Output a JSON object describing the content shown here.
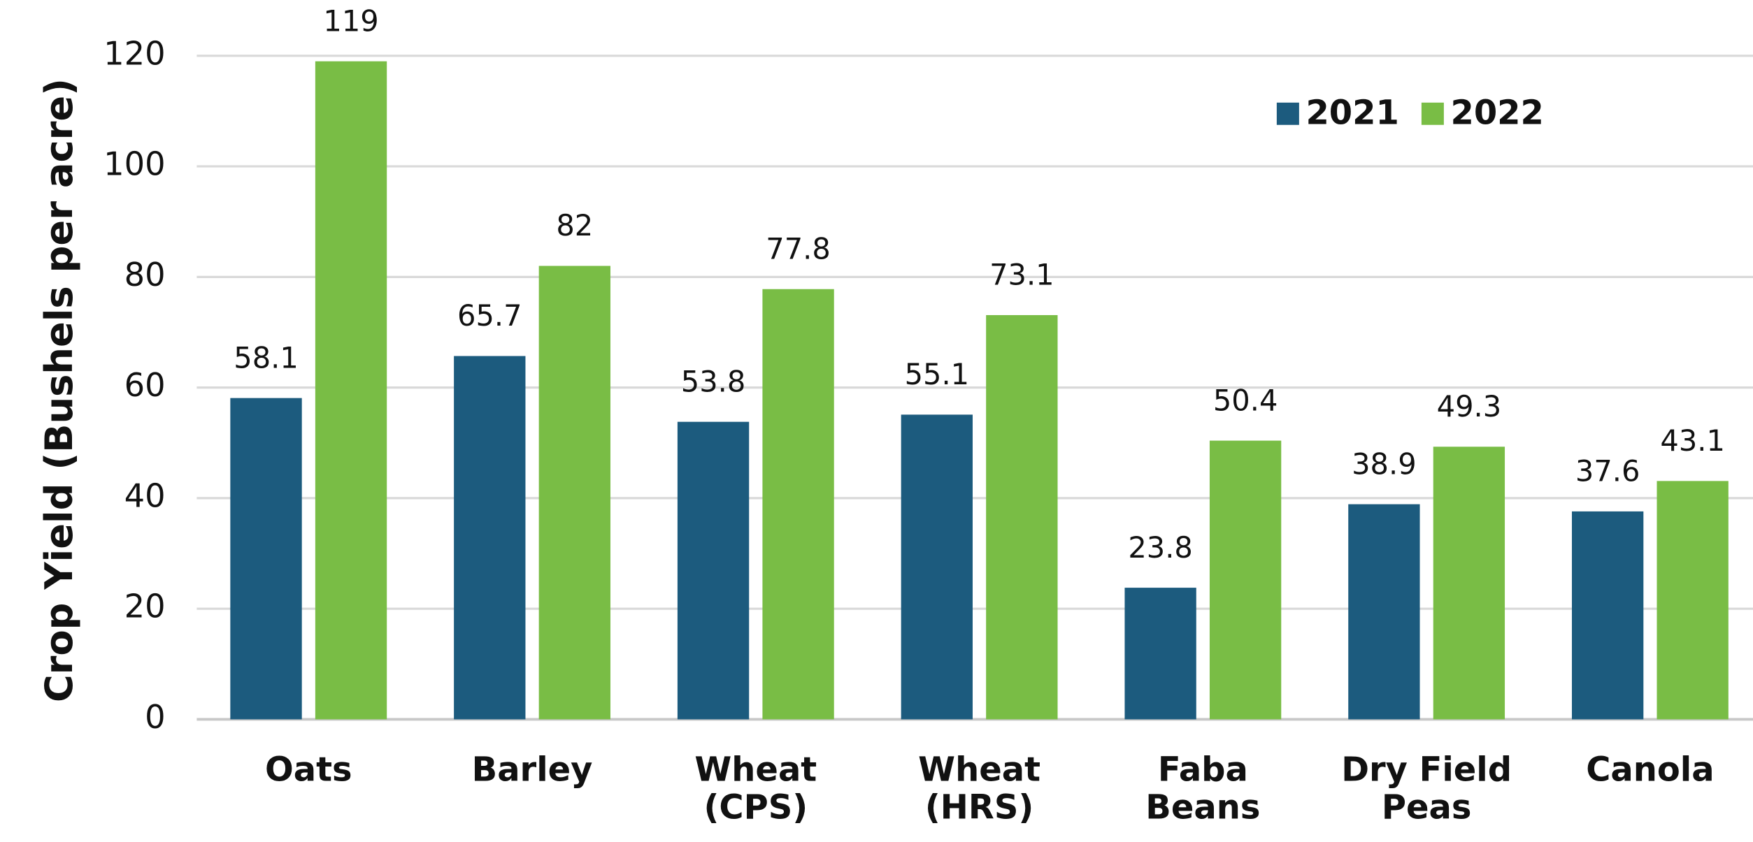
{
  "chart_data": {
    "type": "bar",
    "y_label": "Crop Yield (Bushels per acre)",
    "categories": [
      "Oats",
      "Barley",
      "Wheat\n(CPS)",
      "Wheat\n(HRS)",
      "Faba\nBeans",
      "Dry Field\nPeas",
      "Canola"
    ],
    "series": [
      {
        "name": "2021",
        "color": "#1c5b7e",
        "values": [
          58.1,
          65.7,
          53.8,
          55.1,
          23.8,
          38.9,
          37.6
        ]
      },
      {
        "name": "2022",
        "color": "#79bd45",
        "values": [
          119,
          82,
          77.8,
          73.1,
          50.4,
          49.3,
          43.1
        ]
      }
    ],
    "ylim": [
      0,
      120
    ],
    "yticks": [
      0,
      20,
      40,
      60,
      80,
      100,
      120
    ],
    "grid": true,
    "legend": "top-right"
  }
}
